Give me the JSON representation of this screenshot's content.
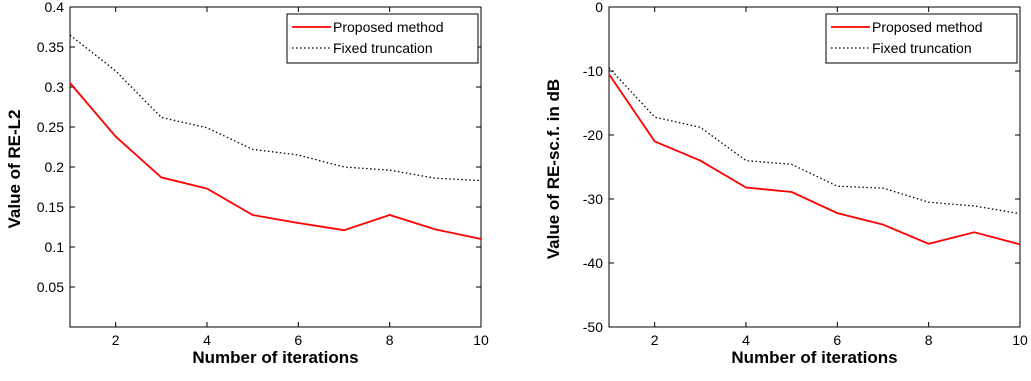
{
  "chart_data": [
    {
      "type": "line",
      "xlabel": "Number of iterations",
      "ylabel": "Value of RE-L2",
      "xlim": [
        1,
        10
      ],
      "ylim": [
        0,
        0.4
      ],
      "xticks": [
        2,
        4,
        6,
        8,
        10
      ],
      "yticks": [
        0.05,
        0.1,
        0.15,
        0.2,
        0.25,
        0.3,
        0.35,
        0.4
      ],
      "ytick_labels": [
        "0.05",
        "0.1",
        "0.15",
        "0.2",
        "0.25",
        "0.3",
        "0.35",
        "0.4"
      ],
      "xtick_labels": [
        "2",
        "4",
        "6",
        "8",
        "10"
      ],
      "grid": false,
      "legend_position": "top-right",
      "x": [
        1,
        2,
        3,
        4,
        5,
        6,
        7,
        8,
        9,
        10
      ],
      "series": [
        {
          "name": "Proposed method",
          "color": "#ff0000",
          "style": "solid",
          "values": [
            0.305,
            0.238,
            0.187,
            0.173,
            0.14,
            0.13,
            0.121,
            0.14,
            0.122,
            0.11
          ]
        },
        {
          "name": "Fixed truncation",
          "color": "#000000",
          "style": "dotted",
          "values": [
            0.365,
            0.32,
            0.262,
            0.249,
            0.222,
            0.215,
            0.2,
            0.196,
            0.186,
            0.183
          ]
        }
      ]
    },
    {
      "type": "line",
      "xlabel": "Number of iterations",
      "ylabel": "Value of RE-sc.f. in dB",
      "xlim": [
        1,
        10
      ],
      "ylim": [
        -50,
        0
      ],
      "xticks": [
        2,
        4,
        6,
        8,
        10
      ],
      "yticks": [
        -50,
        -40,
        -30,
        -20,
        -10,
        0
      ],
      "ytick_labels": [
        "-50",
        "-40",
        "-30",
        "-20",
        "-10",
        "0"
      ],
      "xtick_labels": [
        "2",
        "4",
        "6",
        "8",
        "10"
      ],
      "grid": false,
      "legend_position": "top-right",
      "x": [
        1,
        2,
        3,
        4,
        5,
        6,
        7,
        8,
        9,
        10
      ],
      "series": [
        {
          "name": "Proposed method",
          "color": "#ff0000",
          "style": "solid",
          "values": [
            -10.5,
            -21.0,
            -24.0,
            -28.2,
            -28.9,
            -32.2,
            -34.0,
            -37.0,
            -35.2,
            -37.1
          ]
        },
        {
          "name": "Fixed truncation",
          "color": "#000000",
          "style": "dotted",
          "values": [
            -9.5,
            -17.2,
            -18.8,
            -24.0,
            -24.6,
            -28.0,
            -28.3,
            -30.5,
            -31.1,
            -32.3
          ]
        }
      ]
    }
  ]
}
